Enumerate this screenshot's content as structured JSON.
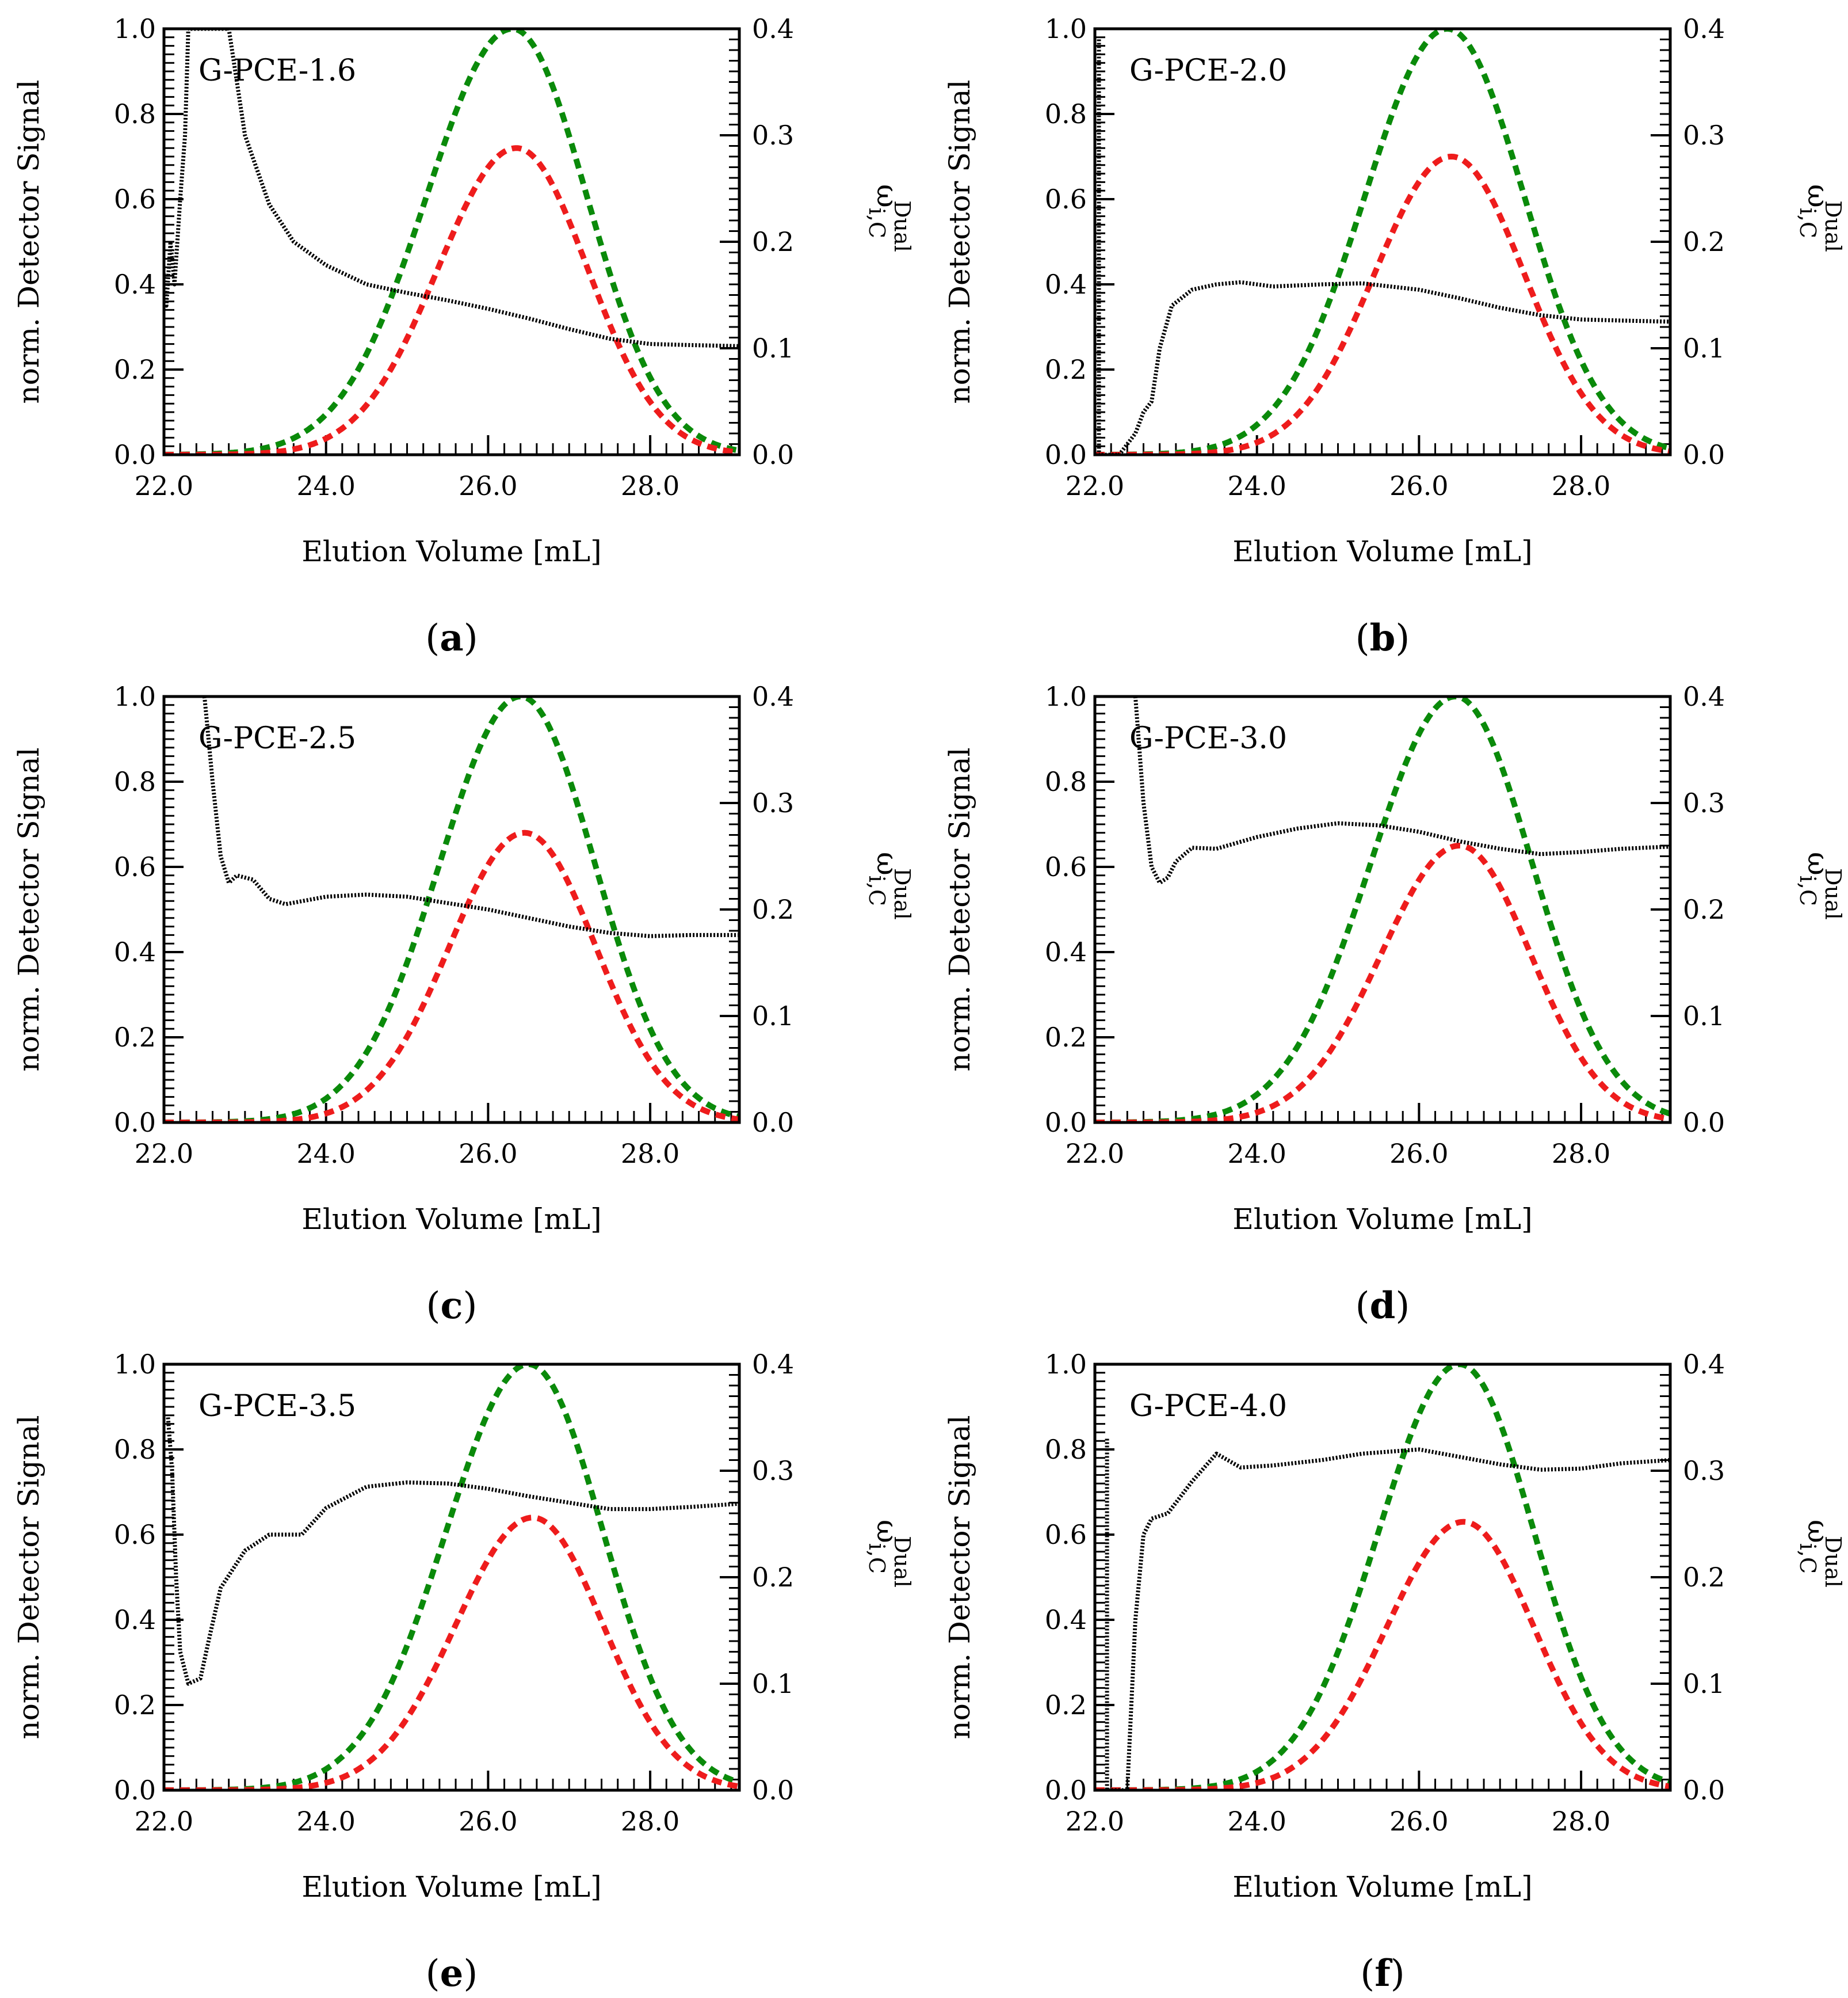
{
  "figure": {
    "panels": [
      {
        "letter": "a",
        "sample": "G-PCE-1.6"
      },
      {
        "letter": "b",
        "sample": "G-PCE-2.0"
      },
      {
        "letter": "c",
        "sample": "G-PCE-2.5"
      },
      {
        "letter": "d",
        "sample": "G-PCE-3.0"
      },
      {
        "letter": "e",
        "sample": "G-PCE-3.5"
      },
      {
        "letter": "f",
        "sample": "G-PCE-4.0"
      }
    ],
    "colors": {
      "green_series": "#0a8a0a",
      "red_series": "#ee1c1c",
      "black_series": "#000000"
    }
  },
  "chart_data": [
    {
      "type": "line",
      "panel_label": "G-PCE-1.6",
      "subfigure": "(a)",
      "xlabel": "Elution Volume [mL]",
      "ylabel": "norm. Detector Signal",
      "ylabel_right": "ω_i,C^Dual",
      "xlim": [
        22.0,
        29.1
      ],
      "ylim": [
        0.0,
        1.0
      ],
      "ylim_right": [
        0.0,
        0.4
      ],
      "xticks": [
        "22.0",
        "24.0",
        "26.0",
        "28.0"
      ],
      "yticks": [
        "0.0",
        "0.2",
        "0.4",
        "0.6",
        "0.8",
        "1.0"
      ],
      "yticks_right": [
        "0.0",
        "0.1",
        "0.2",
        "0.3",
        "0.4"
      ],
      "series": [
        {
          "color": "green",
          "style": "dashed",
          "axis": "left",
          "shape": {
            "peak_x": 26.3,
            "peak_y": 1.0,
            "sigma_left": 1.06,
            "sigma_right": 0.92
          }
        },
        {
          "color": "red",
          "style": "dashed",
          "axis": "left",
          "shape": {
            "peak_x": 26.35,
            "peak_y": 0.72,
            "sigma_left": 0.97,
            "sigma_right": 0.88
          }
        },
        {
          "color": "black",
          "style": "dotted",
          "axis": "right",
          "x": [
            22.0,
            22.03,
            22.08,
            22.13,
            22.2,
            22.26,
            22.3,
            22.8,
            23.0,
            23.3,
            23.6,
            24.0,
            24.5,
            25.0,
            25.5,
            26.0,
            26.5,
            27.0,
            27.5,
            28.0,
            28.5,
            29.1
          ],
          "y": [
            0.17,
            0.14,
            0.2,
            0.16,
            0.24,
            0.3,
            0.4,
            0.4,
            0.3,
            0.235,
            0.2,
            0.178,
            0.16,
            0.152,
            0.145,
            0.137,
            0.128,
            0.118,
            0.109,
            0.104,
            0.103,
            0.102
          ]
        }
      ]
    },
    {
      "type": "line",
      "panel_label": "G-PCE-2.0",
      "subfigure": "(b)",
      "xlabel": "Elution Volume [mL]",
      "ylabel": "norm. Detector Signal",
      "ylabel_right": "ω_i,C^Dual",
      "xlim": [
        22.0,
        29.1
      ],
      "ylim": [
        0.0,
        1.0
      ],
      "ylim_right": [
        0.0,
        0.4
      ],
      "xticks": [
        "22.0",
        "24.0",
        "26.0",
        "28.0"
      ],
      "yticks": [
        "0.0",
        "0.2",
        "0.4",
        "0.6",
        "0.8",
        "1.0"
      ],
      "yticks_right": [
        "0.0",
        "0.1",
        "0.2",
        "0.3",
        "0.4"
      ],
      "series": [
        {
          "color": "green",
          "style": "dashed",
          "axis": "left",
          "shape": {
            "peak_x": 26.35,
            "peak_y": 1.0,
            "sigma_left": 1.02,
            "sigma_right": 0.95
          }
        },
        {
          "color": "red",
          "style": "dashed",
          "axis": "left",
          "shape": {
            "peak_x": 26.4,
            "peak_y": 0.7,
            "sigma_left": 0.95,
            "sigma_right": 0.9
          }
        },
        {
          "color": "black",
          "style": "dotted",
          "axis": "right",
          "x": [
            22.05,
            22.05,
            22.3,
            22.5,
            22.6,
            22.7,
            22.8,
            22.95,
            23.2,
            23.5,
            23.8,
            24.2,
            24.8,
            25.3,
            26.0,
            26.5,
            27.0,
            27.5,
            28.0,
            28.5,
            29.1
          ],
          "y": [
            0.39,
            0.0,
            0.0,
            0.02,
            0.04,
            0.05,
            0.1,
            0.14,
            0.155,
            0.16,
            0.162,
            0.158,
            0.16,
            0.161,
            0.155,
            0.147,
            0.138,
            0.131,
            0.127,
            0.126,
            0.125
          ]
        }
      ]
    },
    {
      "type": "line",
      "panel_label": "G-PCE-2.5",
      "subfigure": "(c)",
      "xlabel": "Elution Volume [mL]",
      "ylabel": "norm. Detector Signal",
      "ylabel_right": "ω_i,C^Dual",
      "xlim": [
        22.0,
        29.1
      ],
      "ylim": [
        0.0,
        1.0
      ],
      "ylim_right": [
        0.0,
        0.4
      ],
      "xticks": [
        "22.0",
        "24.0",
        "26.0",
        "28.0"
      ],
      "yticks": [
        "0.0",
        "0.2",
        "0.4",
        "0.6",
        "0.8",
        "1.0"
      ],
      "yticks_right": [
        "0.0",
        "0.1",
        "0.2",
        "0.3",
        "0.4"
      ],
      "series": [
        {
          "color": "green",
          "style": "dashed",
          "axis": "left",
          "shape": {
            "peak_x": 26.4,
            "peak_y": 1.0,
            "sigma_left": 1.0,
            "sigma_right": 0.92
          }
        },
        {
          "color": "red",
          "style": "dashed",
          "axis": "left",
          "shape": {
            "peak_x": 26.45,
            "peak_y": 0.68,
            "sigma_left": 0.93,
            "sigma_right": 0.88
          }
        },
        {
          "color": "black",
          "style": "dotted",
          "axis": "right",
          "x": [
            22.5,
            22.6,
            22.7,
            22.8,
            22.9,
            23.1,
            23.3,
            23.5,
            24.0,
            24.5,
            25.0,
            25.5,
            26.0,
            26.5,
            27.0,
            27.5,
            28.0,
            28.5,
            29.1
          ],
          "y": [
            0.4,
            0.32,
            0.25,
            0.225,
            0.232,
            0.228,
            0.21,
            0.205,
            0.212,
            0.214,
            0.212,
            0.206,
            0.2,
            0.192,
            0.184,
            0.178,
            0.175,
            0.176,
            0.176
          ]
        }
      ]
    },
    {
      "type": "line",
      "panel_label": "G-PCE-3.0",
      "subfigure": "(d)",
      "xlabel": "Elution Volume [mL]",
      "ylabel": "norm. Detector Signal",
      "ylabel_right": "ω_i,C^Dual",
      "xlim": [
        22.0,
        29.1
      ],
      "ylim": [
        0.0,
        1.0
      ],
      "ylim_right": [
        0.0,
        0.4
      ],
      "xticks": [
        "22.0",
        "24.0",
        "26.0",
        "28.0"
      ],
      "yticks": [
        "0.0",
        "0.2",
        "0.4",
        "0.6",
        "0.8",
        "1.0"
      ],
      "yticks_right": [
        "0.0",
        "0.1",
        "0.2",
        "0.3",
        "0.4"
      ],
      "series": [
        {
          "color": "green",
          "style": "dashed",
          "axis": "left",
          "shape": {
            "peak_x": 26.45,
            "peak_y": 1.0,
            "sigma_left": 1.05,
            "sigma_right": 0.95
          }
        },
        {
          "color": "red",
          "style": "dashed",
          "axis": "left",
          "shape": {
            "peak_x": 26.5,
            "peak_y": 0.65,
            "sigma_left": 0.97,
            "sigma_right": 0.88
          }
        },
        {
          "color": "black",
          "style": "dotted",
          "axis": "right",
          "x": [
            22.5,
            22.6,
            22.7,
            22.8,
            22.9,
            23.0,
            23.2,
            23.5,
            24.0,
            24.5,
            25.0,
            25.5,
            26.0,
            26.5,
            27.0,
            27.5,
            28.0,
            28.5,
            29.1
          ],
          "y": [
            0.4,
            0.3,
            0.24,
            0.225,
            0.23,
            0.245,
            0.258,
            0.257,
            0.268,
            0.276,
            0.281,
            0.279,
            0.273,
            0.264,
            0.257,
            0.252,
            0.254,
            0.257,
            0.259
          ]
        }
      ]
    },
    {
      "type": "line",
      "panel_label": "G-PCE-3.5",
      "subfigure": "(e)",
      "xlabel": "Elution Volume [mL]",
      "ylabel": "norm. Detector Signal",
      "ylabel_right": "ω_i,C^Dual",
      "xlim": [
        22.0,
        29.1
      ],
      "ylim": [
        0.0,
        1.0
      ],
      "ylim_right": [
        0.0,
        0.4
      ],
      "xticks": [
        "22.0",
        "24.0",
        "26.0",
        "28.0"
      ],
      "yticks": [
        "0.0",
        "0.2",
        "0.4",
        "0.6",
        "0.8",
        "1.0"
      ],
      "yticks_right": [
        "0.0",
        "0.1",
        "0.2",
        "0.3",
        "0.4"
      ],
      "series": [
        {
          "color": "green",
          "style": "dashed",
          "axis": "left",
          "shape": {
            "peak_x": 26.5,
            "peak_y": 1.0,
            "sigma_left": 1.02,
            "sigma_right": 0.92
          }
        },
        {
          "color": "red",
          "style": "dashed",
          "axis": "left",
          "shape": {
            "peak_x": 26.55,
            "peak_y": 0.64,
            "sigma_left": 0.95,
            "sigma_right": 0.87
          }
        },
        {
          "color": "black",
          "style": "dotted",
          "axis": "right",
          "x": [
            22.05,
            22.1,
            22.15,
            22.2,
            22.3,
            22.45,
            22.55,
            22.7,
            23.0,
            23.3,
            23.7,
            24.0,
            24.5,
            25.0,
            25.5,
            26.0,
            26.5,
            27.0,
            27.5,
            28.0,
            28.5,
            29.1
          ],
          "y": [
            0.35,
            0.3,
            0.2,
            0.13,
            0.1,
            0.105,
            0.14,
            0.19,
            0.225,
            0.24,
            0.24,
            0.265,
            0.285,
            0.289,
            0.288,
            0.283,
            0.276,
            0.27,
            0.264,
            0.264,
            0.266,
            0.269
          ]
        }
      ]
    },
    {
      "type": "line",
      "panel_label": "G-PCE-4.0",
      "subfigure": "(f)",
      "xlabel": "Elution Volume [mL]",
      "ylabel": "norm. Detector Signal",
      "ylabel_right": "ω_i,C^Dual",
      "xlim": [
        22.0,
        29.1
      ],
      "ylim": [
        0.0,
        1.0
      ],
      "ylim_right": [
        0.0,
        0.4
      ],
      "xticks": [
        "22.0",
        "24.0",
        "26.0",
        "28.0"
      ],
      "yticks": [
        "0.0",
        "0.2",
        "0.4",
        "0.6",
        "0.8",
        "1.0"
      ],
      "yticks_right": [
        "0.0",
        "0.1",
        "0.2",
        "0.3",
        "0.4"
      ],
      "series": [
        {
          "color": "green",
          "style": "dashed",
          "axis": "left",
          "shape": {
            "peak_x": 26.5,
            "peak_y": 1.0,
            "sigma_left": 1.0,
            "sigma_right": 0.92
          }
        },
        {
          "color": "red",
          "style": "dashed",
          "axis": "left",
          "shape": {
            "peak_x": 26.55,
            "peak_y": 0.63,
            "sigma_left": 0.95,
            "sigma_right": 0.87
          }
        },
        {
          "color": "black",
          "style": "dotted",
          "axis": "right",
          "x": [
            22.15,
            22.15,
            22.4,
            22.5,
            22.6,
            22.7,
            22.9,
            23.2,
            23.5,
            23.8,
            24.2,
            24.8,
            25.3,
            26.0,
            26.5,
            27.0,
            27.5,
            28.0,
            28.5,
            29.1
          ],
          "y": [
            0.33,
            0.0,
            0.0,
            0.16,
            0.24,
            0.255,
            0.26,
            0.29,
            0.316,
            0.303,
            0.305,
            0.31,
            0.316,
            0.32,
            0.313,
            0.306,
            0.301,
            0.302,
            0.307,
            0.31
          ]
        }
      ]
    }
  ]
}
